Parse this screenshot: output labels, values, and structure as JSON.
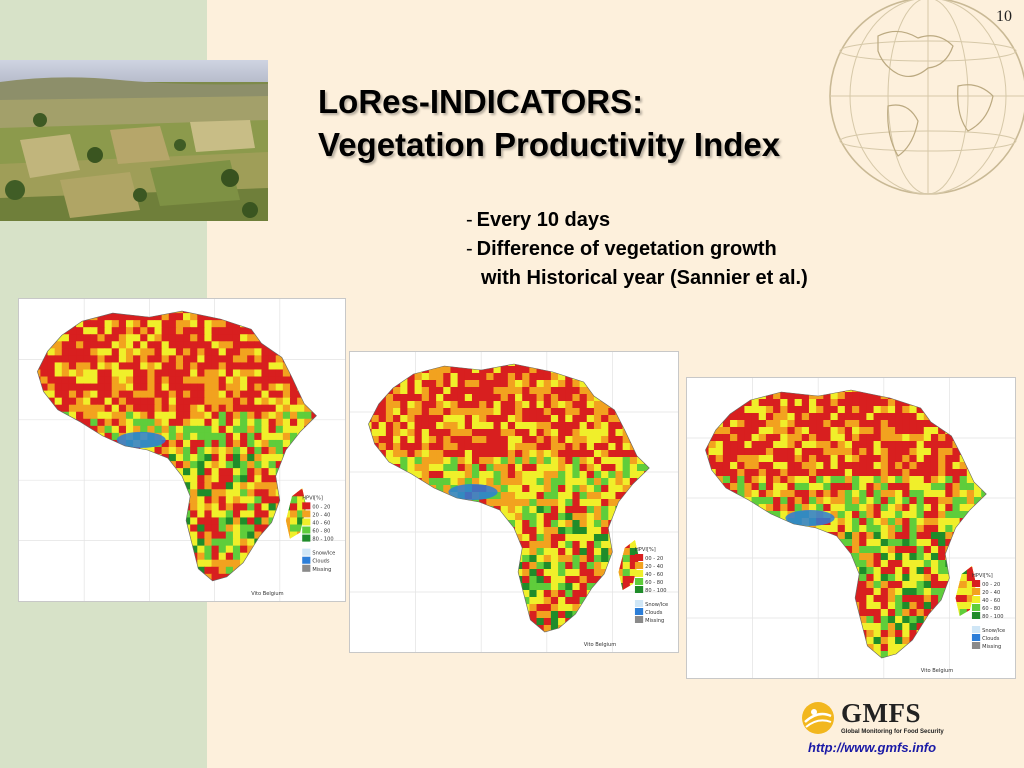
{
  "slide_number": "10",
  "title": {
    "line1": "LoRes-INDICATORS:",
    "line2": "Vegetation Productivity Index"
  },
  "bullets": [
    "Every 10 days",
    "Difference of vegetation growth",
    "with Historical year (Sannier et al.)"
  ],
  "photo": {
    "icon": "aerial-farmland-photo"
  },
  "globe": {
    "icon": "globe-icon"
  },
  "maps": [
    {
      "legend_title": "HPVI[%]",
      "credit": "Vito Belgium"
    },
    {
      "legend_title": "HPVI[%]",
      "credit": "Vito Belgium"
    },
    {
      "legend_title": "HPVI[%]",
      "credit": "Vito Belgium"
    }
  ],
  "legend": {
    "classes": [
      "00 - 20",
      "20 - 40",
      "40 - 60",
      "60 - 80",
      "80 - 100"
    ],
    "class_colors": [
      "#d81f1f",
      "#f2a21f",
      "#f0ef2a",
      "#5fcd3b",
      "#1f8c2a"
    ],
    "other": [
      "Snow/Ice",
      "Clouds",
      "Missing"
    ],
    "other_colors": [
      "#cfe6f6",
      "#2c7ed8",
      "#8a8a8a"
    ]
  },
  "logo": {
    "name": "GMFS",
    "subtitle": "Global Monitoring for Food Security",
    "icon": "gmfs-logo-icon"
  },
  "url": "http://www.gmfs.info",
  "colors": {
    "background": "#fdf0dc",
    "left_band": "#d7e2c8",
    "url": "#1a1aa6"
  }
}
